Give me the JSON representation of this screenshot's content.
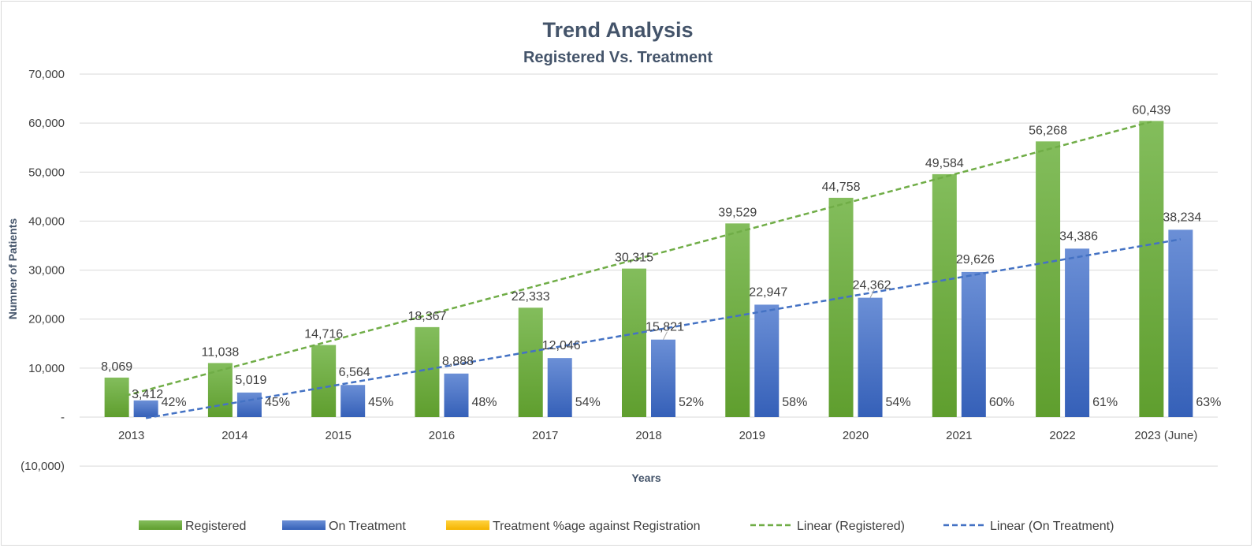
{
  "chart_data": {
    "type": "bar",
    "title": "Trend Analysis",
    "subtitle": "Registered Vs. Treatment",
    "xlabel": "Years",
    "ylabel": "Numner of Patients",
    "ylim": [
      -10000,
      70000
    ],
    "y_ticks": [
      {
        "value": 70000,
        "label": "70,000"
      },
      {
        "value": 60000,
        "label": "60,000"
      },
      {
        "value": 50000,
        "label": "50,000"
      },
      {
        "value": 40000,
        "label": "40,000"
      },
      {
        "value": 30000,
        "label": "30,000"
      },
      {
        "value": 20000,
        "label": "20,000"
      },
      {
        "value": 10000,
        "label": "10,000"
      },
      {
        "value": 0,
        "label": "-"
      },
      {
        "value": -10000,
        "label": "(10,000)"
      }
    ],
    "grid": true,
    "legend_position": "bottom",
    "categories": [
      "2013",
      "2014",
      "2015",
      "2016",
      "2017",
      "2018",
      "2019",
      "2020",
      "2021",
      "2022",
      "2023 (June)"
    ],
    "series": [
      {
        "name": "Registered",
        "color": "#70ad47",
        "values": [
          8069,
          11038,
          14716,
          18367,
          22333,
          30315,
          39529,
          44758,
          49584,
          56268,
          60439
        ],
        "labels": [
          "8,069",
          "11,038",
          "14,716",
          "18,367",
          "22,333",
          "30,315",
          "39,529",
          "44,758",
          "49,584",
          "56,268",
          "60,439"
        ]
      },
      {
        "name": "On Treatment",
        "color": "#4472c4",
        "values": [
          3412,
          5019,
          6564,
          8888,
          12046,
          15821,
          22947,
          24362,
          29626,
          34386,
          38234
        ],
        "labels": [
          "3,412",
          "5,019",
          "6,564",
          "8,888",
          "12,046",
          "15,821",
          "22,947",
          "24,362",
          "29,626",
          "34,386",
          "38,234"
        ]
      },
      {
        "name": "Treatment %age against Registration",
        "color": "#ffc000",
        "values": [
          42,
          45,
          45,
          48,
          54,
          52,
          58,
          54,
          60,
          61,
          63
        ],
        "labels": [
          "42%",
          "45%",
          "45%",
          "48%",
          "54%",
          "52%",
          "58%",
          "54%",
          "60%",
          "61%",
          "63%"
        ]
      }
    ],
    "trendlines": [
      {
        "name": "Linear (Registered)",
        "color": "#70ad47",
        "series": "Registered",
        "start": 3900,
        "end": 60300
      },
      {
        "name": "Linear (On Treatment)",
        "color": "#4472c4",
        "series": "On Treatment",
        "start": -200,
        "end": 36300
      }
    ]
  }
}
